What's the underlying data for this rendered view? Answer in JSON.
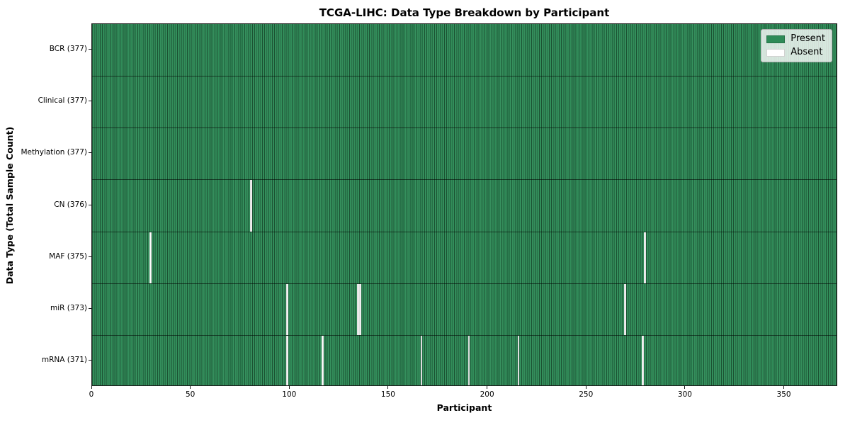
{
  "figure": {
    "title": "TCGA-LIHC: Data Type Breakdown by Participant",
    "xlabel": "Participant",
    "ylabel": "Data Type (Total Sample Count)"
  },
  "legend": {
    "position": "upper right",
    "items": [
      {
        "name": "present",
        "label": "Present",
        "swatch_color": "#2e8b57"
      },
      {
        "name": "absent",
        "label": "Absent",
        "swatch_color": "#ffffff"
      }
    ]
  },
  "chart_data": {
    "type": "heatmap",
    "title": "TCGA-LIHC: Data Type Breakdown by Participant",
    "xlabel": "Participant",
    "ylabel": "Data Type (Total Sample Count)",
    "x_range": [
      0,
      377
    ],
    "x_ticks": [
      0,
      50,
      100,
      150,
      200,
      250,
      300,
      350
    ],
    "n_participants": 377,
    "grid": false,
    "legend_position": "upper right",
    "colors": {
      "present": "#2e8b57",
      "absent": "#ffffff",
      "cell_edge": "rgba(0,0,0,0.45)"
    },
    "rows": [
      {
        "label": "BCR (377)",
        "data_type": "BCR",
        "present_count": 377,
        "absent_participants": []
      },
      {
        "label": "Clinical (377)",
        "data_type": "Clinical",
        "present_count": 377,
        "absent_participants": []
      },
      {
        "label": "Methylation (377)",
        "data_type": "Methylation",
        "present_count": 377,
        "absent_participants": []
      },
      {
        "label": "CN (376)",
        "data_type": "CN",
        "present_count": 376,
        "absent_participants": [
          80
        ]
      },
      {
        "label": "MAF (375)",
        "data_type": "MAF",
        "present_count": 375,
        "absent_participants": [
          29,
          279
        ]
      },
      {
        "label": "miR (373)",
        "data_type": "miR",
        "present_count": 373,
        "absent_participants": [
          98,
          134,
          135,
          269
        ]
      },
      {
        "label": "mRNA (371)",
        "data_type": "mRNA",
        "present_count": 371,
        "absent_participants": [
          98,
          116,
          166,
          190,
          215,
          278
        ]
      }
    ]
  }
}
